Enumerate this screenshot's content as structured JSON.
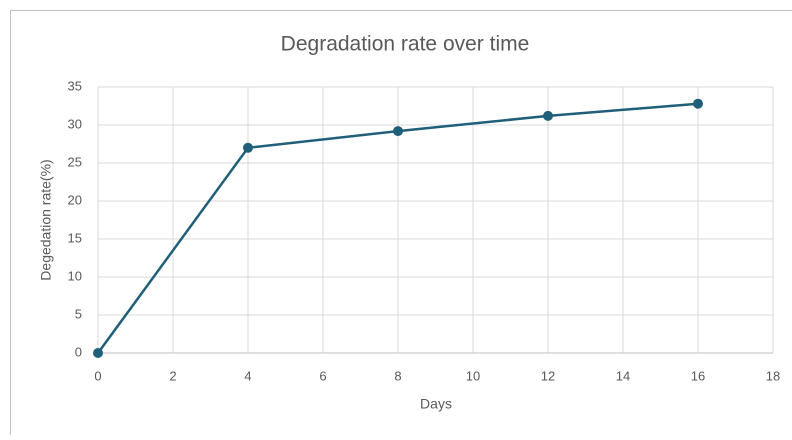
{
  "chart_data": {
    "type": "line",
    "title": "Degradation rate over time",
    "x_label": "Days",
    "y_label": "Degedation rate(%)",
    "x": [
      0,
      4,
      8,
      12,
      16
    ],
    "series": [
      {
        "name": "Degradation rate",
        "color": "#1f5f7a",
        "values": [
          0,
          27,
          29.2,
          31.2,
          32.8
        ]
      }
    ],
    "xlim": [
      0,
      18
    ],
    "xticks": [
      0,
      2,
      4,
      6,
      8,
      10,
      12,
      14,
      16,
      18
    ],
    "ylim": [
      0,
      35
    ],
    "yticks": [
      0,
      5,
      10,
      15,
      20,
      25,
      30,
      35
    ],
    "grid": true
  }
}
